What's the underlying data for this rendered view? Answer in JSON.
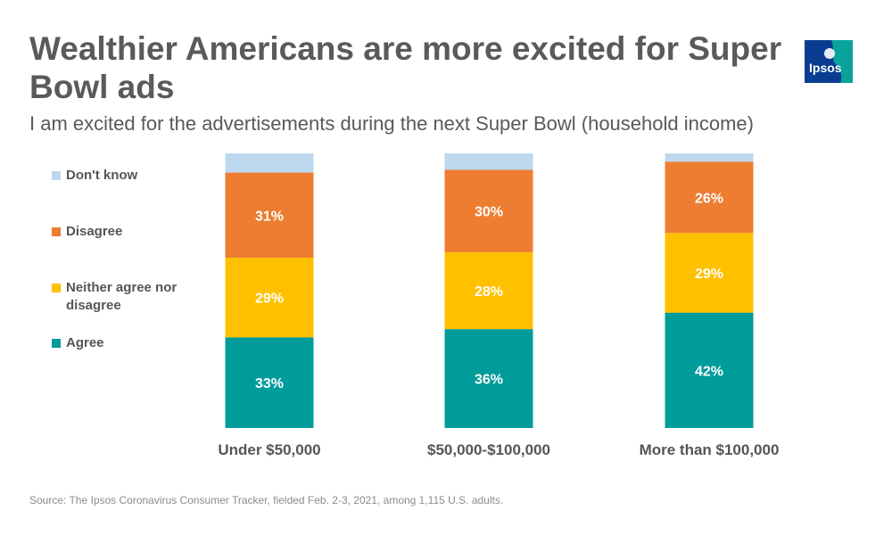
{
  "header": {
    "title": "Wealthier Americans are more excited for Super Bowl ads",
    "subtitle": "I am excited for the advertisements during the next Super Bowl (household income)"
  },
  "logo": {
    "text": "Ipsos",
    "color": "#0a3d91",
    "accent": "#0aa39b"
  },
  "legend": [
    {
      "label": "Don't know",
      "color": "#bdd7ee"
    },
    {
      "label": "Disagree",
      "color": "#ed7d31"
    },
    {
      "label": "Neither agree nor disagree",
      "color": "#ffc000"
    },
    {
      "label": "Agree",
      "color": "#009c9a"
    }
  ],
  "chart_data": {
    "type": "bar",
    "stacked": true,
    "categories": [
      "Under $50,000",
      "$50,000-$100,000",
      "More than $100,000"
    ],
    "series": [
      {
        "name": "Agree",
        "values": [
          33,
          36,
          42
        ],
        "color": "#009c9a"
      },
      {
        "name": "Neither agree nor disagree",
        "values": [
          29,
          28,
          29
        ],
        "color": "#ffc000"
      },
      {
        "name": "Disagree",
        "values": [
          31,
          30,
          26
        ],
        "color": "#ed7d31"
      },
      {
        "name": "Don't know",
        "values": [
          7,
          6,
          3
        ],
        "color": "#bdd7ee"
      }
    ],
    "data_labels": [
      [
        "33%",
        "36%",
        "42%"
      ],
      [
        "29%",
        "28%",
        "29%"
      ],
      [
        "31%",
        "30%",
        "26%"
      ],
      [
        "",
        "",
        ""
      ]
    ],
    "ylim": [
      0,
      100
    ],
    "grid": false,
    "legend_position": "left"
  },
  "source": "Source: The Ipsos Coronavirus Consumer Tracker, fielded Feb. 2-3, 2021, among 1,115 U.S. adults."
}
